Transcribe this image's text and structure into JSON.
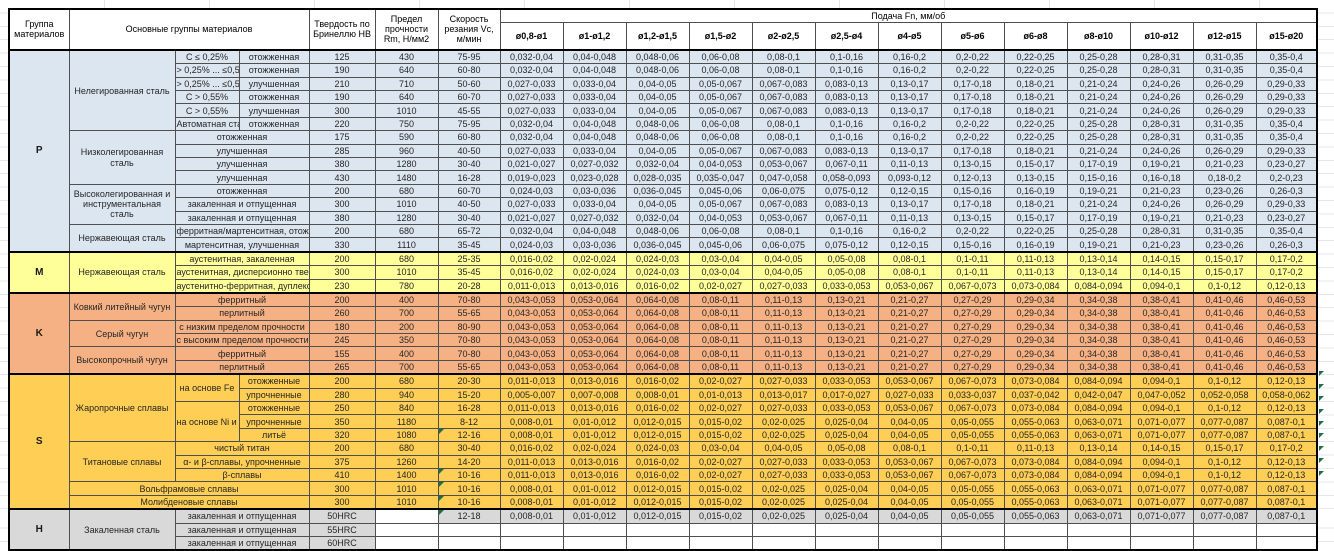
{
  "header": {
    "col_group": "Группа материалов",
    "col_materials": "Основные группы материалов",
    "col_hardness": "Твердость по Бринеллю HB",
    "col_strength": "Предел прочности Rm, Н/мм2",
    "col_speed": "Скорость резания Vc, м/мин",
    "feed_title": "Подача Fn, мм/об",
    "feed_cols": [
      "ø0,8-ø1",
      "ø1-ø1,2",
      "ø1,2-ø1,5",
      "ø1,5-ø2",
      "ø2-ø2,5",
      "ø2,5-ø4",
      "ø4-ø5",
      "ø5-ø6",
      "ø6-ø8",
      "ø8-ø10",
      "ø10-ø12",
      "ø12-ø15",
      "ø15-ø20"
    ]
  },
  "colors": {
    "P": "#DCE6F1",
    "M": "#FFFF99",
    "K": "#F5B183",
    "S": "#FFCE54",
    "H": "#D9D9D9",
    "marker_green": "#1d7044"
  },
  "feed_patterns": {
    "A": [
      "0,032-0,04",
      "0,04-0,048",
      "0,048-0,06",
      "0,06-0,08",
      "0,08-0,1",
      "0,1-0,16",
      "0,16-0,2",
      "0,2-0,22",
      "0,22-0,25",
      "0,25-0,28",
      "0,28-0,31",
      "0,31-0,35",
      "0,35-0,4"
    ],
    "B": [
      "0,027-0,033",
      "0,033-0,04",
      "0,04-0,05",
      "0,05-0,067",
      "0,067-0,083",
      "0,083-0,13",
      "0,13-0,17",
      "0,17-0,18",
      "0,18-0,21",
      "0,21-0,24",
      "0,24-0,26",
      "0,26-0,29",
      "0,29-0,33"
    ],
    "C": [
      "0,021-0,027",
      "0,027-0,032",
      "0,032-0,04",
      "0,04-0,053",
      "0,053-0,067",
      "0,067-0,11",
      "0,11-0,13",
      "0,13-0,15",
      "0,15-0,17",
      "0,17-0,19",
      "0,19-0,21",
      "0,21-0,23",
      "0,23-0,27"
    ],
    "D": [
      "0,019-0,023",
      "0,023-0,028",
      "0,028-0,035",
      "0,035-0,047",
      "0,047-0,058",
      "0,058-0,093",
      "0,093-0,12",
      "0,12-0,13",
      "0,13-0,15",
      "0,15-0,16",
      "0,16-0,18",
      "0,18-0,2",
      "0,2-0,23"
    ],
    "E": [
      "0,024-0,03",
      "0,03-0,036",
      "0,036-0,045",
      "0,045-0,06",
      "0,06-0,075",
      "0,075-0,12",
      "0,12-0,15",
      "0,15-0,16",
      "0,16-0,19",
      "0,19-0,21",
      "0,21-0,23",
      "0,23-0,26",
      "0,26-0,3"
    ],
    "F": [
      "0,016-0,02",
      "0,02-0,024",
      "0,024-0,03",
      "0,03-0,04",
      "0,04-0,05",
      "0,05-0,08",
      "0,08-0,1",
      "0,1-0,11",
      "0,11-0,13",
      "0,13-0,14",
      "0,14-0,15",
      "0,15-0,17",
      "0,17-0,2"
    ],
    "G": [
      "0,011-0,013",
      "0,013-0,016",
      "0,016-0,02",
      "0,02-0,027",
      "0,027-0,033",
      "0,033-0,053",
      "0,053-0,067",
      "0,067-0,073",
      "0,073-0,084",
      "0,084-0,094",
      "0,094-0,1",
      "0,1-0,12",
      "0,12-0,13"
    ],
    "K8": [
      "0,043-0,053",
      "0,053-0,064",
      "0,064-0,08",
      "0,08-0,11",
      "0,11-0,13",
      "0,13-0,21",
      "0,21-0,27",
      "0,27-0,29",
      "0,29-0,34",
      "0,34-0,38",
      "0,38-0,41",
      "0,41-0,46",
      "0,46-0,53"
    ],
    "I": [
      "0,005-0,007",
      "0,007-0,008",
      "0,008-0,01",
      "0,01-0,013",
      "0,013-0,017",
      "0,017-0,027",
      "0,027-0,033",
      "0,033-0,037",
      "0,037-0,042",
      "0,042-0,047",
      "0,047-0,052",
      "0,052-0,058",
      "0,058-0,062"
    ],
    "J": [
      "0,008-0,01",
      "0,01-0,012",
      "0,012-0,015",
      "0,015-0,02",
      "0,02-0,025",
      "0,025-0,04",
      "0,04-0,05",
      "0,05-0,055",
      "0,055-0,063",
      "0,063-0,071",
      "0,071-0,077",
      "0,077-0,087",
      "0,087-0,1"
    ],
    "EMPTY": [
      "",
      "",
      "",
      "",
      "",
      "",
      "",
      "",
      "",
      "",
      "",
      "",
      ""
    ]
  },
  "right_marker_rows": [
    26,
    27,
    28,
    29,
    30,
    31,
    32,
    33,
    34
  ],
  "rows": [
    {
      "grp": "P",
      "top": true,
      "g": {
        "label": "P",
        "span": 15
      },
      "m": {
        "label": "Нелегированная сталь",
        "span": 6
      },
      "s1": {
        "label": "C ≤ 0,25%"
      },
      "s2": "отожженная",
      "hb": "125",
      "rm": "430",
      "vc": "75-95",
      "feeds": "A"
    },
    {
      "grp": "P",
      "s1": {
        "label": "> 0,25% ... ≤0,55%"
      },
      "s2": "отожженная",
      "hb": "190",
      "rm": "640",
      "vc": "60-80",
      "feeds": "A"
    },
    {
      "grp": "P",
      "s1": {
        "label": "> 0,25% ... ≤0,55%"
      },
      "s2": "улучшенная",
      "hb": "210",
      "rm": "710",
      "vc": "50-60",
      "feeds": "B"
    },
    {
      "grp": "P",
      "s1": {
        "label": "C > 0,55%"
      },
      "s2": "отожженная",
      "hb": "190",
      "rm": "640",
      "vc": "60-70",
      "feeds": "B"
    },
    {
      "grp": "P",
      "s1": {
        "label": "C > 0,55%"
      },
      "s2": "улучшенная",
      "hb": "300",
      "rm": "1010",
      "vc": "45-55",
      "feeds": "B"
    },
    {
      "grp": "P",
      "s1": {
        "label": "Автоматная сталь"
      },
      "s2": "отожженная",
      "hb": "220",
      "rm": "750",
      "vc": "75-95",
      "feeds": "A"
    },
    {
      "grp": "P",
      "m": {
        "label": "Низколегированная сталь",
        "span": 4
      },
      "s1": {
        "label": "отожженная",
        "cs": 2
      },
      "hb": "175",
      "rm": "590",
      "vc": "60-80",
      "feeds": "A"
    },
    {
      "grp": "P",
      "s1": {
        "label": "улучшенная",
        "cs": 2
      },
      "hb": "285",
      "rm": "960",
      "vc": "40-50",
      "feeds": "B"
    },
    {
      "grp": "P",
      "s1": {
        "label": "улучшенная",
        "cs": 2
      },
      "hb": "380",
      "rm": "1280",
      "vc": "30-40",
      "feeds": "C"
    },
    {
      "grp": "P",
      "s1": {
        "label": "улучшенная",
        "cs": 2
      },
      "hb": "430",
      "rm": "1480",
      "vc": "16-28",
      "feeds": "D"
    },
    {
      "grp": "P",
      "m": {
        "label": "Высоколегированная и инструментальная сталь",
        "span": 3
      },
      "s1": {
        "label": "отожженная",
        "cs": 2
      },
      "hb": "200",
      "rm": "680",
      "vc": "60-70",
      "feeds": "E"
    },
    {
      "grp": "P",
      "s1": {
        "label": "закаленная и отпущенная",
        "cs": 2
      },
      "hb": "300",
      "rm": "1010",
      "vc": "40-50",
      "feeds": "B"
    },
    {
      "grp": "P",
      "s1": {
        "label": "закаленная и отпущенная",
        "cs": 2
      },
      "hb": "380",
      "rm": "1280",
      "vc": "30-40",
      "feeds": "C"
    },
    {
      "grp": "P",
      "m": {
        "label": "Нержавеющая сталь",
        "span": 2
      },
      "s1": {
        "label": "ферритная/мартенситная, отожженная",
        "cs": 2
      },
      "hb": "200",
      "rm": "680",
      "vc": "65-72",
      "feeds": "A"
    },
    {
      "grp": "P",
      "s1": {
        "label": "мартенситная, улучшенная",
        "cs": 2
      },
      "hb": "330",
      "rm": "1110",
      "vc": "35-45",
      "feeds": "E"
    },
    {
      "grp": "M",
      "top": true,
      "g": {
        "label": "M",
        "span": 3
      },
      "m": {
        "label": "Нержавеющая сталь",
        "span": 3
      },
      "s1": {
        "label": "аустенитная, закаленная",
        "cs": 2
      },
      "hb": "200",
      "rm": "680",
      "vc": "25-35",
      "feeds": "F"
    },
    {
      "grp": "M",
      "s1": {
        "label": "аустенитная, дисперсионно твердеющая",
        "cs": 2
      },
      "hb": "300",
      "rm": "1010",
      "vc": "35-45",
      "feeds": "F"
    },
    {
      "grp": "M",
      "s1": {
        "label": "аустенитно-ферритная, дуплексная",
        "cs": 2
      },
      "hb": "230",
      "rm": "780",
      "vc": "20-28",
      "feeds": "G"
    },
    {
      "grp": "K",
      "top": true,
      "g": {
        "label": "K",
        "span": 6
      },
      "m": {
        "label": "Ковкий литейный чугун",
        "span": 2
      },
      "s1": {
        "label": "ферритный",
        "cs": 2
      },
      "hb": "200",
      "rm": "400",
      "vc": "70-80",
      "feeds": "K8"
    },
    {
      "grp": "K",
      "s1": {
        "label": "перлитный",
        "cs": 2
      },
      "hb": "260",
      "rm": "700",
      "vc": "55-65",
      "feeds": "K8"
    },
    {
      "grp": "K",
      "m": {
        "label": "Серый чугун",
        "span": 2
      },
      "s1": {
        "label": "с низким пределом прочности",
        "cs": 2
      },
      "hb": "180",
      "rm": "200",
      "vc": "80-90",
      "feeds": "K8"
    },
    {
      "grp": "K",
      "s1": {
        "label": "с высоким пределом прочности",
        "cs": 2
      },
      "hb": "245",
      "rm": "350",
      "vc": "70-80",
      "feeds": "K8"
    },
    {
      "grp": "K",
      "m": {
        "label": "Высокопрочный чугун",
        "span": 2
      },
      "s1": {
        "label": "ферритный",
        "cs": 2
      },
      "hb": "155",
      "rm": "400",
      "vc": "70-80",
      "feeds": "K8"
    },
    {
      "grp": "K",
      "s1": {
        "label": "перлитный",
        "cs": 2
      },
      "hb": "265",
      "rm": "700",
      "vc": "55-65",
      "feeds": "K8"
    },
    {
      "grp": "S",
      "top": true,
      "g": {
        "label": "S",
        "span": 10
      },
      "m": {
        "label": "Жаропрочные сплавы",
        "span": 5
      },
      "s1": {
        "label": "на основе Fe",
        "span": 2
      },
      "s2": "отожженные",
      "hb": "200",
      "rm": "680",
      "vc": "20-30",
      "feeds": "G"
    },
    {
      "grp": "S",
      "s2": "упрочненные",
      "hb": "280",
      "rm": "940",
      "vc": "15-20",
      "feeds": "I"
    },
    {
      "grp": "S",
      "s1": {
        "label": "на основе Ni и Co",
        "span": 3
      },
      "s2": "отожженные",
      "hb": "250",
      "rm": "840",
      "vc": "16-28",
      "feeds": "G"
    },
    {
      "grp": "S",
      "s2": "упрочненные",
      "hb": "350",
      "rm": "1180",
      "vc": "8-12",
      "feeds": "J"
    },
    {
      "grp": "S",
      "s2": "литьё",
      "hb": "320",
      "rm": "1080",
      "vc": "12-16",
      "vcMark": true,
      "feeds": "J"
    },
    {
      "grp": "S",
      "m": {
        "label": "Титановые сплавы",
        "span": 3
      },
      "s1": {
        "label": "чистый титан",
        "cs": 2
      },
      "hb": "200",
      "rm": "680",
      "vc": "30-40",
      "feeds": "F"
    },
    {
      "grp": "S",
      "s1": {
        "label": "α- и β-сплавы, упрочненные",
        "cs": 2
      },
      "hb": "375",
      "rm": "1260",
      "vc": "14-20",
      "feeds": "G"
    },
    {
      "grp": "S",
      "s1": {
        "label": "β-сплавы",
        "cs": 2
      },
      "hb": "410",
      "rm": "1400",
      "vc": "10-16",
      "vcMark": true,
      "feeds": "G"
    },
    {
      "grp": "S",
      "m": {
        "label": "Вольфрамовые сплавы",
        "span": 1,
        "cs": 3
      },
      "hb": "300",
      "rm": "1010",
      "vc": "10-16",
      "vcMark": true,
      "feeds": "J"
    },
    {
      "grp": "S",
      "m": {
        "label": "Молибденовые сплавы",
        "span": 1,
        "cs": 3
      },
      "hb": "300",
      "rm": "1010",
      "vc": "10-16",
      "vcMark": true,
      "feeds": "J"
    },
    {
      "grp": "H",
      "top": true,
      "g": {
        "label": "H",
        "span": 3
      },
      "m": {
        "label": "Закаленная сталь",
        "span": 3
      },
      "s1": {
        "label": "закаленная и отпущенная",
        "cs": 2
      },
      "hb": "50HRC",
      "rm": "",
      "vc": "12-18",
      "vcMark": true,
      "feeds": "J"
    },
    {
      "grp": "H",
      "s1": {
        "label": "закаленная и отпущенная",
        "cs": 2
      },
      "hb": "55HRC",
      "rm": "",
      "vc": "",
      "feeds": "EMPTY"
    },
    {
      "grp": "H",
      "s1": {
        "label": "закаленная и отпущенная",
        "cs": 2
      },
      "hb": "60HRC",
      "rm": "",
      "vc": "",
      "feeds": "EMPTY"
    }
  ]
}
